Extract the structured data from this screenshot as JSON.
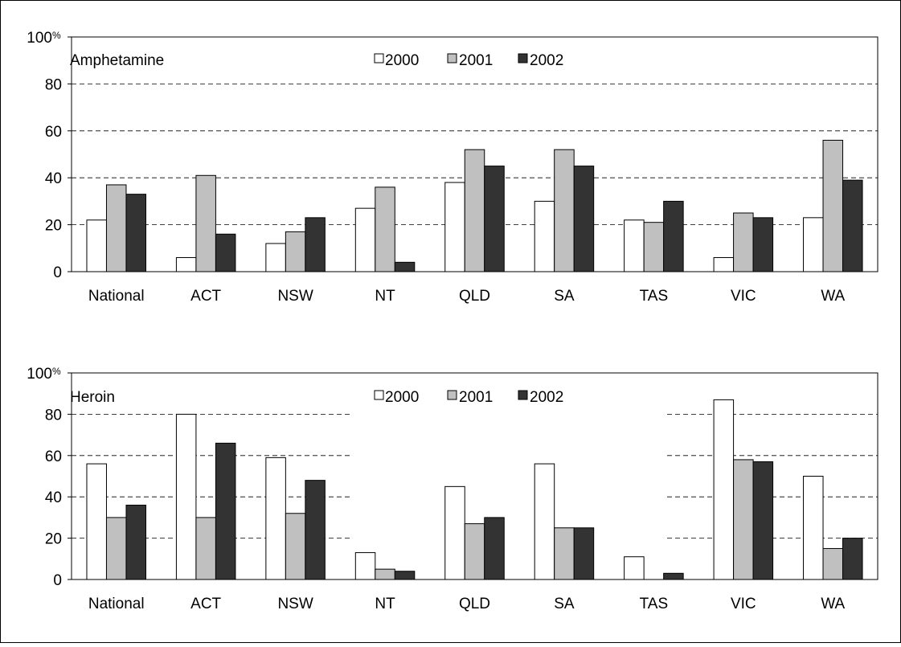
{
  "chart_data": [
    {
      "type": "bar",
      "title": "Amphetamine",
      "xlabel": "",
      "ylabel": "",
      "y_unit": "%",
      "ylim": [
        0,
        100
      ],
      "yticks": [
        "0",
        "20",
        "40",
        "60",
        "80",
        "100"
      ],
      "grid": true,
      "legend": "top",
      "categories": [
        "National",
        "ACT",
        "NSW",
        "NT",
        "QLD",
        "SA",
        "TAS",
        "VIC",
        "WA"
      ],
      "series": [
        {
          "name": "2000",
          "color": "#ffffff",
          "values": [
            22,
            6,
            12,
            27,
            38,
            30,
            22,
            6,
            23
          ]
        },
        {
          "name": "2001",
          "color": "#c0c0c0",
          "values": [
            37,
            41,
            17,
            36,
            52,
            52,
            21,
            25,
            56
          ]
        },
        {
          "name": "2002",
          "color": "#333333",
          "values": [
            33,
            16,
            23,
            4,
            45,
            45,
            30,
            23,
            39
          ]
        }
      ]
    },
    {
      "type": "bar",
      "title": "Heroin",
      "xlabel": "",
      "ylabel": "",
      "y_unit": "%",
      "ylim": [
        0,
        100
      ],
      "yticks": [
        "0",
        "20",
        "40",
        "60",
        "80",
        "100"
      ],
      "grid": true,
      "legend": "top",
      "categories": [
        "National",
        "ACT",
        "NSW",
        "NT",
        "QLD",
        "SA",
        "TAS",
        "VIC",
        "WA"
      ],
      "series": [
        {
          "name": "2000",
          "color": "#ffffff",
          "values": [
            56,
            80,
            59,
            13,
            45,
            56,
            11,
            87,
            50
          ]
        },
        {
          "name": "2001",
          "color": "#c0c0c0",
          "values": [
            30,
            30,
            32,
            5,
            27,
            25,
            0,
            58,
            15
          ]
        },
        {
          "name": "2002",
          "color": "#333333",
          "values": [
            36,
            66,
            48,
            4,
            30,
            25,
            3,
            57,
            20
          ]
        }
      ]
    }
  ]
}
